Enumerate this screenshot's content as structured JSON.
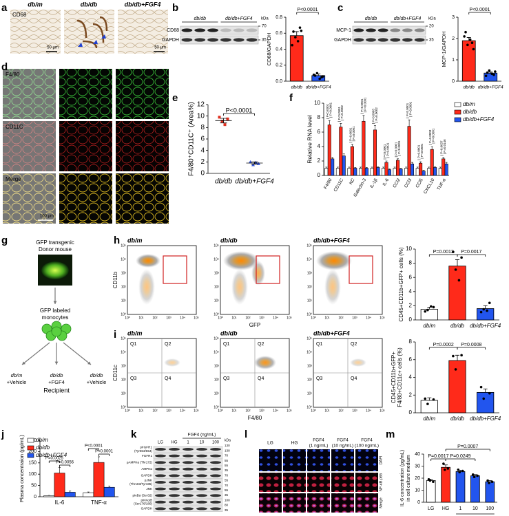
{
  "panels": {
    "a": {
      "letter": "a",
      "columns": [
        "db/m",
        "db/db",
        "db/db+FGF4"
      ],
      "stain": "CD68",
      "scale_bar": "50 μm"
    },
    "b": {
      "letter": "b",
      "groups": [
        "db/db",
        "db/db+FGF4"
      ],
      "rows": [
        "CD68",
        "GAPDH"
      ],
      "unit": "kDa",
      "markers": [
        "70",
        "35"
      ]
    },
    "c": {
      "letter": "c",
      "groups": [
        "db/db",
        "db/db+FGF4"
      ],
      "rows": [
        "MCP-1",
        "GAPDH"
      ],
      "unit": "kDa",
      "markers": [
        "20",
        "35"
      ]
    },
    "d": {
      "letter": "d",
      "rows": [
        "F4/80",
        "CD11C",
        "Merge"
      ],
      "scale_bar": "100 μm"
    },
    "e": {
      "letter": "e"
    },
    "f": {
      "letter": "f"
    },
    "g": {
      "letter": "g",
      "donor": [
        "GFP transgenic",
        "Donor mouse"
      ],
      "cells": [
        "GFP labeled",
        "monocytes"
      ],
      "groups": [
        [
          "db/m",
          "+Vehicle"
        ],
        [
          "db/db",
          "+FGF4"
        ],
        [
          "db/db",
          "+Vehicle"
        ]
      ],
      "recipient": "Recipient"
    },
    "h": {
      "letter": "h",
      "plots": [
        "db/m",
        "db/db",
        "db/db+FGF4"
      ],
      "ylabel": "CD11b",
      "xlabel": "GFP",
      "ticks": [
        "10⁰",
        "10¹",
        "10²",
        "10³",
        "10⁴",
        "10⁵"
      ]
    },
    "i": {
      "letter": "i",
      "plots": [
        "db/m",
        "db/db",
        "db/db+FGF4"
      ],
      "quadrants": [
        "Q1",
        "Q2",
        "Q3",
        "Q4"
      ],
      "ylabel": "CD11c",
      "xlabel": "F4/80",
      "ticks": [
        "10⁰",
        "10¹",
        "10²",
        "10³",
        "10⁴",
        "10⁵"
      ]
    },
    "j": {
      "letter": "j"
    },
    "k": {
      "letter": "k",
      "header": "FGF4 (ng/mL)",
      "lanes": [
        "LG",
        "HG",
        "1",
        "10",
        "100"
      ],
      "rows": [
        [
          "pFGFR1",
          "(Tyr653/654)"
        ],
        [
          "FGFR1"
        ],
        [
          "pAMPKα (Thr172)"
        ],
        [
          "AMPKα"
        ],
        [
          "GAPDH"
        ],
        [
          "pJNK",
          "(Thr183/Tyr185)"
        ],
        [
          "JNK"
        ],
        [
          "pIκBα (Ser32)"
        ],
        [
          "pIKKα/β",
          "(Ser176/180)"
        ],
        [
          "GAPDH"
        ]
      ],
      "unit": "kDa",
      "markers": [
        "130",
        "130",
        "70",
        "55",
        "55",
        "35",
        "70",
        "55",
        "70",
        "55",
        "35",
        "100",
        "80",
        "35"
      ]
    },
    "l": {
      "letter": "l",
      "columns": [
        [
          "LG"
        ],
        [
          "HG"
        ],
        [
          "FGF4",
          "(1 ng/mL)"
        ],
        [
          "FGF4",
          "(10 ng/mL)"
        ],
        [
          "FGF4",
          "(100 ng/mL)"
        ]
      ],
      "rows": [
        "DAPI",
        "NF-κB p65",
        "Merge"
      ]
    },
    "m": {
      "letter": "m"
    }
  },
  "chart_data": [
    {
      "type": "bar",
      "ylabel": "CD68/GAPDH",
      "categories": [
        "db/db",
        "db/db+FGF4"
      ],
      "values": [
        0.57,
        0.07
      ],
      "errors": [
        0.05,
        0.02
      ],
      "points": [
        [
          0.62,
          0.67,
          0.55,
          0.5,
          0.45,
          0.63
        ],
        [
          0.07,
          0.05,
          0.1,
          0.03,
          0.08,
          0.06
        ]
      ],
      "colors": [
        "#ff2a1a",
        "#2255ee"
      ],
      "ylim": [
        0,
        0.8
      ],
      "yticks": [
        {
          "value": 0,
          "label": "0.0"
        },
        0.2,
        0.4,
        0.6,
        0.8
      ],
      "annotations": [
        "P<0.0001"
      ]
    },
    {
      "type": "bar",
      "ylabel": "MCP-1/GAPDH",
      "categories": [
        "db/db",
        "db/db+FGF4"
      ],
      "values": [
        1.9,
        0.38
      ],
      "errors": [
        0.15,
        0.05
      ],
      "points": [
        [
          2.3,
          1.8,
          1.7,
          1.95,
          2.1,
          1.5
        ],
        [
          0.4,
          0.3,
          0.5,
          0.35,
          0.25,
          0.45
        ]
      ],
      "colors": [
        "#ff2a1a",
        "#2255ee"
      ],
      "ylim": [
        0,
        3
      ],
      "yticks": [
        0,
        1,
        2,
        3
      ],
      "annotations": [
        "P<0.0001"
      ]
    },
    {
      "type": "dotplot",
      "ylabel": "F4/80⁺CD11C⁺ (Area%)",
      "categories": [
        "db/db",
        "db/db+FGF4"
      ],
      "values": [
        9.2,
        1.8
      ],
      "errors": [
        0.4,
        0.2
      ],
      "points": [
        [
          9.8,
          9.5,
          9.1,
          8.5
        ],
        [
          2.0,
          1.7,
          1.5,
          1.9
        ]
      ],
      "colors": [
        "#e03020",
        "#3355dd"
      ],
      "ylim": [
        0,
        12
      ],
      "yticks": [
        0,
        2,
        4,
        6,
        8,
        10,
        12
      ],
      "annotations": [
        "P<0.0001"
      ]
    },
    {
      "type": "grouped_bar",
      "ylabel": "Relative RNA level",
      "categories": [
        "F4/80",
        "CD11C",
        "KC",
        "Galectin-3",
        "IL-1β",
        "IL-6",
        "CCl2",
        "CCl3",
        "CCl5",
        "CXCL10",
        "TNF-α"
      ],
      "series": [
        {
          "name": "db/m",
          "color": "#ffffff",
          "values": [
            1,
            1,
            1,
            1,
            1,
            1,
            1,
            1,
            1,
            1,
            1
          ],
          "errors": [
            0.15,
            0.15,
            0.15,
            0.15,
            0.15,
            0.15,
            0.15,
            0.15,
            0.15,
            0.15,
            0.15
          ]
        },
        {
          "name": "db/db",
          "color": "#ff2a1a",
          "values": [
            7.0,
            6.7,
            4.0,
            7.5,
            6.3,
            1.8,
            2.1,
            6.8,
            1.7,
            3.6,
            2.3
          ],
          "errors": [
            0.6,
            0.5,
            0.3,
            0.8,
            0.6,
            0.2,
            0.2,
            0.9,
            0.2,
            0.4,
            0.2
          ]
        },
        {
          "name": "db/db+FGF4",
          "color": "#2255ee",
          "values": [
            2.3,
            2.7,
            1.0,
            1.0,
            1.1,
            0.8,
            0.9,
            1.6,
            0.6,
            1.1,
            1.6
          ],
          "errors": [
            0.2,
            0.3,
            0.1,
            0.1,
            0.1,
            0.1,
            0.1,
            0.2,
            0.1,
            0.1,
            0.2
          ]
        }
      ],
      "ylim": [
        0,
        10
      ],
      "yticks": [
        0,
        2,
        4,
        6,
        8,
        10
      ],
      "annotations": [
        [
          "P<0.0001",
          "P<0.0001"
        ],
        [
          "P<0.0001",
          "P=0.0002"
        ],
        [
          "P<0.0001",
          "P=0.0001"
        ],
        [
          "P<0.0001",
          "P<0.0001"
        ],
        [
          "P=0.0003",
          "P=0.0002"
        ],
        [
          "P<0.0001",
          "P<0.0001"
        ],
        [
          "P<0.0001",
          "P<0.0001"
        ],
        [
          "P<0.0001",
          "P<0.0001"
        ],
        [
          "P=0.0001",
          "P<0.0001"
        ],
        [
          "P=0.0003",
          "P<0.0001"
        ],
        [
          "P=0.0037",
          "P=0.0146"
        ]
      ],
      "legend": "right"
    },
    {
      "type": "bar",
      "ylabel": "CD45+CD11b+GFP+ cells (%)",
      "categories": [
        "db/m",
        "db/db",
        "db/db+FGF4"
      ],
      "values": [
        1.5,
        7.6,
        1.6
      ],
      "errors": [
        0.3,
        0.9,
        0.4
      ],
      "points": [
        [
          1.2,
          1.8,
          1.4,
          1.9
        ],
        [
          9.6,
          8.8,
          7.1,
          5.6
        ],
        [
          1.1,
          2.4,
          1.5,
          1.3
        ]
      ],
      "colors": [
        "#ffffff",
        "#ff2a1a",
        "#2255ee"
      ],
      "ylim": [
        0,
        10
      ],
      "yticks": [
        0,
        2,
        4,
        6,
        8,
        10
      ],
      "annotations": [
        "P=0.0013",
        "P=0.0017"
      ]
    },
    {
      "type": "bar",
      "ylabel": [
        "CD45+CD11b+GFP+",
        "F4/80+CD11c+ cells (%)"
      ],
      "categories": [
        "db/m",
        "db/db",
        "db/db+FGF4"
      ],
      "values": [
        1.4,
        5.9,
        2.3
      ],
      "errors": [
        0.3,
        0.6,
        0.4
      ],
      "points": [
        [
          1.6,
          1.5,
          1.0
        ],
        [
          6.4,
          6.5,
          4.9
        ],
        [
          2.9,
          2.2,
          1.6
        ]
      ],
      "colors": [
        "#ffffff",
        "#ff2a1a",
        "#2255ee"
      ],
      "ylim": [
        0,
        8
      ],
      "yticks": [
        0,
        2,
        4,
        6,
        8
      ],
      "annotations": [
        "P=0.0002",
        "P=0.0008"
      ]
    },
    {
      "type": "grouped_bar",
      "ylabel": "Plasma concentraion (pg/mL)",
      "categories": [
        "IL-6",
        "TNF-α"
      ],
      "series": [
        {
          "name": "db/m",
          "color": "#ffffff",
          "values": [
            5,
            18
          ],
          "errors": [
            1,
            3
          ]
        },
        {
          "name": "db/db",
          "color": "#ff2a1a",
          "values": [
            105,
            152
          ],
          "errors": [
            25,
            25
          ]
        },
        {
          "name": "db/db+FGF4",
          "color": "#2255ee",
          "values": [
            20,
            42
          ],
          "errors": [
            5,
            6
          ]
        }
      ],
      "ylim": [
        0,
        250
      ],
      "yticks": [
        0,
        50,
        100,
        150,
        200,
        250
      ],
      "annotations": [
        "P=0.0025",
        "P=0.0056",
        "P<0.0001",
        "P<0.0001"
      ],
      "legend": "top-left"
    },
    {
      "type": "bar",
      "ylabel": [
        "IL-6 concentration (pg/mL)",
        "in cell culture medium"
      ],
      "categories": [
        "LG",
        "HG",
        "1",
        "10",
        "100"
      ],
      "xlabel": "FGF4 (ng/mL)",
      "values": [
        18,
        29,
        25.5,
        22,
        17
      ],
      "errors": [
        1,
        2,
        1,
        1,
        1
      ],
      "points": [
        [
          19,
          17,
          18
        ],
        [
          32,
          28,
          27
        ],
        [
          27,
          26,
          25
        ],
        [
          23,
          22,
          21
        ],
        [
          18,
          17,
          16
        ]
      ],
      "colors": [
        "#ffffff",
        "#ff2a1a",
        "#2255ee",
        "#2255ee",
        "#2255ee"
      ],
      "ylim": [
        0,
        40
      ],
      "yticks": [
        0,
        10,
        20,
        30,
        40
      ],
      "annotations": [
        "P=0.0017",
        "P=0.0249",
        "P=0.0007"
      ]
    }
  ]
}
